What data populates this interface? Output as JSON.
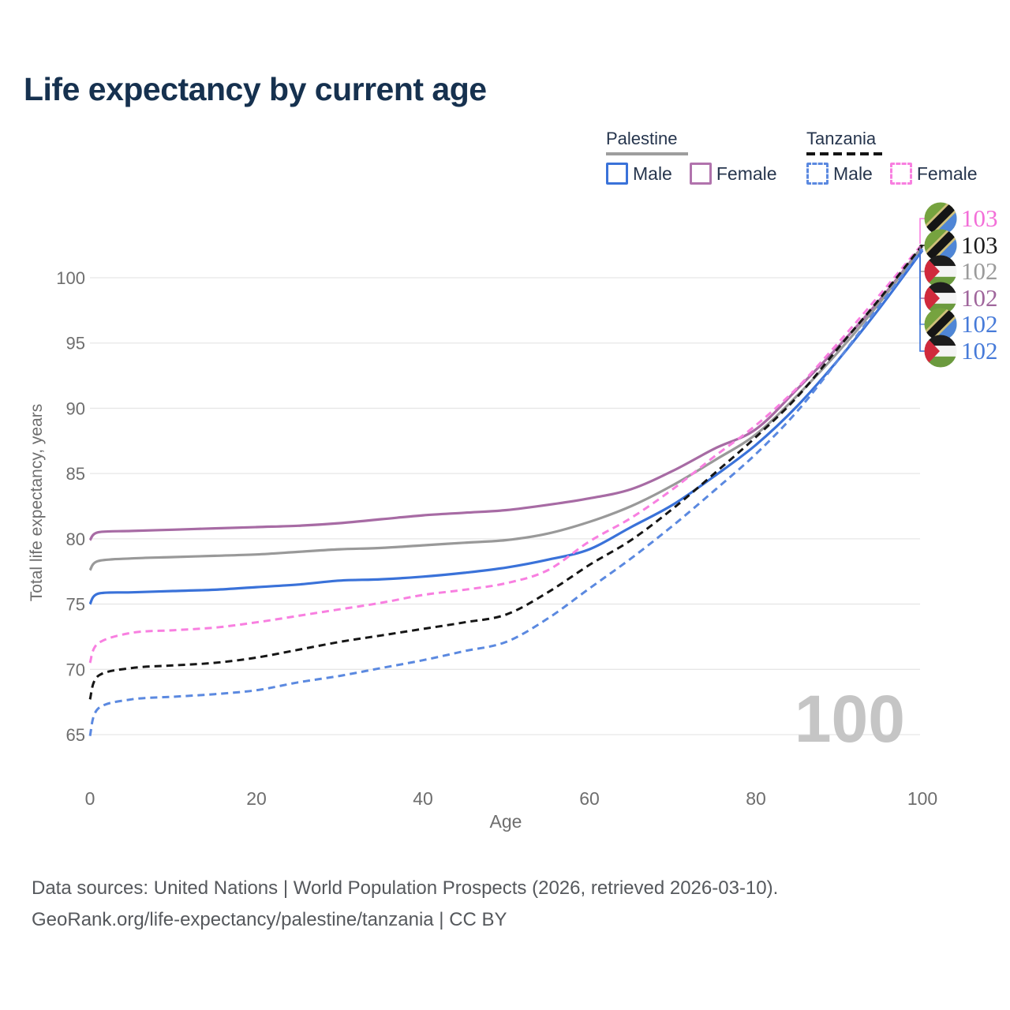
{
  "title": "Life expectancy by current age",
  "legend": {
    "groups": [
      {
        "name": "Palestine",
        "line_style": "solid",
        "underline_color": "#9e9e9e",
        "items": [
          {
            "label": "Male",
            "color": "#3a72d9"
          },
          {
            "label": "Female",
            "color": "#b173ad"
          }
        ]
      },
      {
        "name": "Tanzania",
        "line_style": "dashed",
        "underline_color": "#141414",
        "items": [
          {
            "label": "Male",
            "color": "#5b89e0"
          },
          {
            "label": "Female",
            "color": "#f87fe0"
          }
        ]
      }
    ]
  },
  "chart_data": {
    "type": "line",
    "title": "Life expectancy by current age",
    "xlabel": "Age",
    "ylabel": "Total life expectancy, years",
    "x_ticks": [
      0,
      20,
      40,
      60,
      80,
      100
    ],
    "y_ticks": [
      65,
      70,
      75,
      80,
      85,
      90,
      95,
      100
    ],
    "xlim": [
      0,
      100
    ],
    "ylim": [
      63.5,
      103
    ],
    "grid": true,
    "legend_position": "top-right",
    "age_marker": "100",
    "x": [
      0,
      1,
      5,
      10,
      15,
      20,
      25,
      30,
      35,
      40,
      45,
      50,
      55,
      60,
      65,
      70,
      75,
      80,
      85,
      90,
      95,
      100
    ],
    "series": [
      {
        "name": "Palestine Female",
        "country": "Palestine",
        "sex": "Female",
        "color": "#a76ba4",
        "dash": "solid",
        "values": [
          79.9,
          80.5,
          80.6,
          80.7,
          80.8,
          80.9,
          81.0,
          81.2,
          81.5,
          81.8,
          82.0,
          82.2,
          82.6,
          83.1,
          83.8,
          85.2,
          86.9,
          88.4,
          91.5,
          94.8,
          98.4,
          102.4
        ]
      },
      {
        "name": "Palestine",
        "country": "Palestine",
        "sex": "All",
        "color": "#999999",
        "dash": "solid",
        "values": [
          77.6,
          78.3,
          78.5,
          78.6,
          78.7,
          78.8,
          79.0,
          79.2,
          79.3,
          79.5,
          79.7,
          79.9,
          80.4,
          81.3,
          82.5,
          84.1,
          86.0,
          88.0,
          91.0,
          94.4,
          98.2,
          102.4
        ]
      },
      {
        "name": "Palestine Male",
        "country": "Palestine",
        "sex": "Male",
        "color": "#3a72d9",
        "dash": "solid",
        "values": [
          75.0,
          75.8,
          75.9,
          76.0,
          76.1,
          76.3,
          76.5,
          76.8,
          76.9,
          77.1,
          77.4,
          77.8,
          78.4,
          79.2,
          80.9,
          82.6,
          84.8,
          87.2,
          90.2,
          93.8,
          97.8,
          102.1
        ]
      },
      {
        "name": "Tanzania Female",
        "country": "Tanzania",
        "sex": "Female",
        "color": "#f87fe0",
        "dash": "dashed",
        "values": [
          70.5,
          72.0,
          72.8,
          73.0,
          73.2,
          73.6,
          74.1,
          74.6,
          75.1,
          75.7,
          76.1,
          76.6,
          77.6,
          79.8,
          81.6,
          83.8,
          86.3,
          88.7,
          91.6,
          95.1,
          98.8,
          102.6
        ]
      },
      {
        "name": "Tanzania",
        "country": "Tanzania",
        "sex": "All",
        "color": "#161616",
        "dash": "dashed",
        "values": [
          67.7,
          69.5,
          70.1,
          70.3,
          70.5,
          70.9,
          71.5,
          72.1,
          72.6,
          73.1,
          73.6,
          74.2,
          75.9,
          78.0,
          79.9,
          82.3,
          85.0,
          87.8,
          90.9,
          94.7,
          98.5,
          102.5
        ]
      },
      {
        "name": "Tanzania Male",
        "country": "Tanzania",
        "sex": "Male",
        "color": "#5b89e0",
        "dash": "dashed",
        "values": [
          64.9,
          67.0,
          67.7,
          67.9,
          68.1,
          68.4,
          69.0,
          69.5,
          70.1,
          70.7,
          71.4,
          72.1,
          73.9,
          76.2,
          78.5,
          81.0,
          83.7,
          86.5,
          89.8,
          93.8,
          98.0,
          102.2
        ]
      }
    ]
  },
  "end_labels": [
    {
      "value": "103",
      "color": "#f36fd8",
      "flag": "tanzania",
      "series": "Tanzania Female"
    },
    {
      "value": "103",
      "color": "#1c1c1c",
      "flag": "tanzania",
      "series": "Tanzania"
    },
    {
      "value": "102",
      "color": "#9b9b9b",
      "flag": "palestine",
      "series": "Palestine"
    },
    {
      "value": "102",
      "color": "#a0669c",
      "flag": "palestine",
      "series": "Palestine Female"
    },
    {
      "value": "102",
      "color": "#477bd9",
      "flag": "tanzania",
      "series": "Tanzania Male"
    },
    {
      "value": "102",
      "color": "#477bd9",
      "flag": "palestine",
      "series": "Palestine Male"
    }
  ],
  "footer": {
    "line1": "Data sources: United Nations | World Population Prospects (2026, retrieved 2026-03-10).",
    "line2": "GeoRank.org/life-expectancy/palestine/tanzania | CC BY"
  }
}
